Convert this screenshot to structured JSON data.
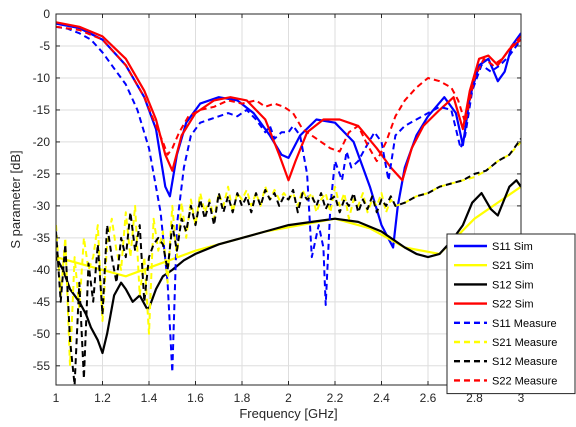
{
  "chart_data": {
    "type": "line",
    "xlabel": "Frequency [GHz]",
    "ylabel": "S parameter [dB]",
    "xlim": [
      1,
      3
    ],
    "ylim": [
      -58,
      0
    ],
    "xticks": [
      "1",
      "1.2",
      "1.4",
      "1.6",
      "1.8",
      "2",
      "2.2",
      "2.4",
      "2.6",
      "2.8",
      "3"
    ],
    "yticks": [
      "0",
      "-5",
      "-10",
      "-15",
      "-20",
      "-25",
      "-30",
      "-35",
      "-40",
      "-45",
      "-50",
      "-55"
    ],
    "grid": true,
    "legend_position": "bottom-right",
    "series": [
      {
        "name": "S11 Sim",
        "color": "#0000ff",
        "dash": "solid",
        "x": [
          1.0,
          1.1,
          1.2,
          1.3,
          1.38,
          1.43,
          1.47,
          1.49,
          1.52,
          1.56,
          1.62,
          1.7,
          1.78,
          1.85,
          1.92,
          1.97,
          2.0,
          2.05,
          2.12,
          2.2,
          2.28,
          2.35,
          2.4,
          2.45,
          2.47,
          2.5,
          2.55,
          2.6,
          2.67,
          2.72,
          2.75,
          2.78,
          2.82,
          2.86,
          2.9,
          2.93,
          2.96,
          3.0
        ],
        "y": [
          -1.5,
          -2.2,
          -4,
          -8,
          -13,
          -18,
          -27,
          -28.5,
          -22,
          -17,
          -14,
          -13,
          -13.5,
          -15.5,
          -19,
          -22,
          -22.5,
          -19,
          -16.5,
          -17,
          -20,
          -27,
          -33,
          -36.5,
          -30,
          -24,
          -19,
          -16,
          -13,
          -15.5,
          -20.5,
          -13,
          -8,
          -7,
          -10.5,
          -9,
          -5,
          -3
        ]
      },
      {
        "name": "S21 Sim",
        "color": "#ffff00",
        "dash": "solid",
        "x": [
          1.0,
          1.3,
          1.6,
          1.9,
          2.2,
          2.35,
          2.5,
          2.65,
          2.8,
          3.0
        ],
        "y": [
          -38,
          -41,
          -37,
          -34,
          -32,
          -33.5,
          -36.5,
          -37.5,
          -32,
          -27
        ]
      },
      {
        "name": "S12 Sim",
        "color": "#000000",
        "dash": "solid",
        "x": [
          1.0,
          1.03,
          1.06,
          1.1,
          1.13,
          1.15,
          1.18,
          1.2,
          1.22,
          1.25,
          1.28,
          1.3,
          1.33,
          1.36,
          1.39,
          1.4,
          1.43,
          1.46,
          1.5,
          1.55,
          1.6,
          1.7,
          1.8,
          1.9,
          2.0,
          2.1,
          2.2,
          2.3,
          2.4,
          2.5,
          2.55,
          2.6,
          2.65,
          2.7,
          2.75,
          2.79,
          2.83,
          2.87,
          2.9,
          2.95,
          2.98,
          3.0
        ],
        "y": [
          -38,
          -40,
          -43,
          -45,
          -47,
          -49,
          -51,
          -53,
          -50,
          -44,
          -42,
          -43,
          -45,
          -44,
          -46,
          -46,
          -43,
          -41,
          -40,
          -38.5,
          -37.5,
          -36,
          -35,
          -34,
          -33,
          -32.5,
          -32,
          -32.5,
          -34,
          -36.5,
          -37.5,
          -38,
          -37.5,
          -35.5,
          -33,
          -29.5,
          -28,
          -30.5,
          -31.5,
          -27,
          -26,
          -27
        ]
      },
      {
        "name": "S22 Sim",
        "color": "#ff0000",
        "dash": "solid",
        "x": [
          1.0,
          1.1,
          1.2,
          1.3,
          1.38,
          1.43,
          1.47,
          1.5,
          1.54,
          1.6,
          1.68,
          1.75,
          1.82,
          1.9,
          1.96,
          2.0,
          2.03,
          2.08,
          2.15,
          2.22,
          2.3,
          2.38,
          2.44,
          2.49,
          2.53,
          2.58,
          2.65,
          2.71,
          2.75,
          2.78,
          2.82,
          2.86,
          2.9,
          2.95,
          3.0
        ],
        "y": [
          -1.3,
          -2,
          -3.5,
          -7,
          -12,
          -16.5,
          -22,
          -24.5,
          -19,
          -15.5,
          -13.5,
          -13,
          -13.5,
          -16.5,
          -22,
          -26,
          -23,
          -18.5,
          -16.5,
          -16.5,
          -17.5,
          -21,
          -24,
          -26,
          -21,
          -17.5,
          -15,
          -13,
          -18,
          -12,
          -7,
          -6.5,
          -8,
          -5.5,
          -4
        ]
      },
      {
        "name": "S11 Measure",
        "color": "#0000ff",
        "dash": "dashed",
        "x": [
          1.0,
          1.05,
          1.1,
          1.15,
          1.2,
          1.25,
          1.3,
          1.35,
          1.4,
          1.45,
          1.48,
          1.5,
          1.52,
          1.55,
          1.58,
          1.62,
          1.66,
          1.7,
          1.74,
          1.78,
          1.82,
          1.86,
          1.9,
          1.92,
          1.94,
          1.97,
          2.0,
          2.02,
          2.05,
          2.08,
          2.1,
          2.13,
          2.15,
          2.16,
          2.18,
          2.2,
          2.23,
          2.25,
          2.27,
          2.3,
          2.33,
          2.37,
          2.4,
          2.43,
          2.46,
          2.5,
          2.55,
          2.6,
          2.65,
          2.7,
          2.74,
          2.76,
          2.79,
          2.83,
          2.87,
          2.91,
          2.95,
          3.0
        ],
        "y": [
          -2,
          -2.3,
          -3,
          -4,
          -6,
          -8.5,
          -11,
          -15,
          -21,
          -31,
          -42,
          -56,
          -33,
          -24,
          -19,
          -17,
          -16.5,
          -16,
          -15.5,
          -16,
          -15,
          -16.5,
          -18.5,
          -17.5,
          -19.5,
          -18.5,
          -18.5,
          -17.5,
          -19,
          -25,
          -38,
          -33,
          -36.5,
          -45.5,
          -30,
          -23,
          -26,
          -21.5,
          -24,
          -23,
          -21,
          -18.5,
          -20,
          -26,
          -19,
          -17.5,
          -16.5,
          -15.5,
          -14.5,
          -15,
          -21,
          -19,
          -12,
          -8,
          -9,
          -8,
          -6.5,
          -4
        ]
      },
      {
        "name": "S21 Measure",
        "color": "#ffff00",
        "dash": "dashed",
        "x": [
          1.0,
          1.02,
          1.04,
          1.06,
          1.08,
          1.1,
          1.12,
          1.14,
          1.16,
          1.18,
          1.2,
          1.22,
          1.24,
          1.26,
          1.28,
          1.3,
          1.32,
          1.34,
          1.36,
          1.38,
          1.4,
          1.42,
          1.44,
          1.46,
          1.48,
          1.5,
          1.52,
          1.54,
          1.56,
          1.58,
          1.6,
          1.62,
          1.64,
          1.66,
          1.68,
          1.7,
          1.72,
          1.74,
          1.76,
          1.78,
          1.8,
          1.82,
          1.84,
          1.86,
          1.88,
          1.9,
          1.92,
          1.94,
          1.96,
          1.98,
          2.0,
          2.02,
          2.04,
          2.06,
          2.08,
          2.1,
          2.12,
          2.14,
          2.16,
          2.18,
          2.2,
          2.22,
          2.24,
          2.26,
          2.28,
          2.3,
          2.32,
          2.34,
          2.36,
          2.38,
          2.4,
          2.42,
          2.44,
          2.46,
          2.5,
          2.55,
          2.6,
          2.65,
          2.7,
          2.75,
          2.8,
          2.85,
          2.9,
          2.95,
          3.0
        ],
        "y": [
          -33,
          -44,
          -35,
          -55,
          -38,
          -46,
          -35,
          -40,
          -38,
          -33,
          -48,
          -36,
          -32,
          -37,
          -40,
          -31,
          -38,
          -30,
          -44,
          -38,
          -50,
          -32,
          -37,
          -34,
          -42,
          -30,
          -38,
          -29.5,
          -35,
          -29,
          -33,
          -28,
          -31,
          -29,
          -32,
          -28,
          -30,
          -27,
          -31,
          -28,
          -29,
          -27.5,
          -30,
          -28,
          -30,
          -27,
          -29,
          -27.5,
          -29,
          -28,
          -29,
          -28,
          -30,
          -27.5,
          -29,
          -28,
          -31,
          -29,
          -28,
          -31,
          -27,
          -30,
          -28,
          -32,
          -29,
          -30,
          -28,
          -31,
          -29,
          -30,
          -28,
          -31,
          -29,
          -30,
          -29.5,
          -28.5,
          -28,
          -27,
          -26.5,
          -26,
          -25.5,
          -24.5,
          -23,
          -22,
          -20
        ]
      },
      {
        "name": "S12 Measure",
        "color": "#000000",
        "dash": "dashed",
        "x": [
          1.0,
          1.02,
          1.04,
          1.06,
          1.08,
          1.1,
          1.12,
          1.14,
          1.16,
          1.18,
          1.2,
          1.22,
          1.24,
          1.26,
          1.28,
          1.3,
          1.32,
          1.34,
          1.36,
          1.38,
          1.4,
          1.42,
          1.44,
          1.46,
          1.48,
          1.5,
          1.52,
          1.54,
          1.56,
          1.58,
          1.6,
          1.62,
          1.64,
          1.66,
          1.68,
          1.7,
          1.72,
          1.74,
          1.76,
          1.78,
          1.8,
          1.82,
          1.84,
          1.86,
          1.88,
          1.9,
          1.92,
          1.94,
          1.96,
          1.98,
          2.0,
          2.02,
          2.04,
          2.06,
          2.08,
          2.1,
          2.12,
          2.14,
          2.16,
          2.18,
          2.2,
          2.22,
          2.24,
          2.26,
          2.28,
          2.3,
          2.32,
          2.34,
          2.36,
          2.38,
          2.4,
          2.42,
          2.44,
          2.46,
          2.5,
          2.55,
          2.6,
          2.65,
          2.7,
          2.75,
          2.8,
          2.85,
          2.9,
          2.95,
          3.0
        ],
        "y": [
          -34,
          -45,
          -36,
          -51,
          -58,
          -42,
          -57,
          -39,
          -45,
          -36,
          -47,
          -33,
          -38,
          -42,
          -35,
          -38,
          -31,
          -37,
          -33,
          -45,
          -38,
          -36,
          -35,
          -36,
          -40,
          -33,
          -37,
          -32,
          -34,
          -30,
          -33,
          -29,
          -32,
          -29.5,
          -33,
          -28,
          -31,
          -28.5,
          -31,
          -28,
          -30,
          -28.5,
          -31,
          -28,
          -30,
          -27.5,
          -29,
          -28,
          -30,
          -28.5,
          -29,
          -27.5,
          -31,
          -28,
          -29,
          -28.5,
          -30,
          -28,
          -30.5,
          -29,
          -28.5,
          -31,
          -29,
          -30,
          -28,
          -31,
          -29,
          -30.5,
          -28.5,
          -31,
          -29,
          -30,
          -28.5,
          -30,
          -29.5,
          -28.5,
          -28,
          -27,
          -26.5,
          -26,
          -25,
          -24.5,
          -23,
          -22,
          -19.5
        ]
      },
      {
        "name": "S22 Measure",
        "color": "#ff0000",
        "dash": "dashed",
        "x": [
          1.0,
          1.1,
          1.2,
          1.3,
          1.38,
          1.43,
          1.46,
          1.48,
          1.5,
          1.53,
          1.57,
          1.62,
          1.68,
          1.74,
          1.8,
          1.86,
          1.9,
          1.94,
          1.98,
          2.02,
          2.06,
          2.1,
          2.14,
          2.18,
          2.22,
          2.26,
          2.3,
          2.34,
          2.38,
          2.42,
          2.46,
          2.5,
          2.55,
          2.6,
          2.65,
          2.7,
          2.73,
          2.76,
          2.8,
          2.84,
          2.88,
          2.92,
          2.96,
          3.0
        ],
        "y": [
          -2,
          -2.5,
          -4,
          -8,
          -13,
          -17.5,
          -20,
          -22,
          -21,
          -18.5,
          -16,
          -15,
          -14.5,
          -13.5,
          -14,
          -13.5,
          -14.5,
          -14,
          -14.5,
          -15.5,
          -18,
          -19,
          -20,
          -21,
          -21.5,
          -18.5,
          -17.5,
          -20.5,
          -23,
          -20,
          -16,
          -13.5,
          -11.5,
          -10,
          -10.5,
          -11.5,
          -13.5,
          -17,
          -10,
          -7,
          -8,
          -7,
          -5,
          -3.5
        ]
      }
    ]
  }
}
